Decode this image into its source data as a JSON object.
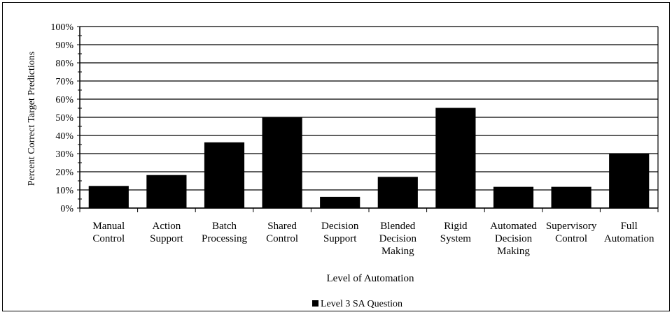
{
  "chart_data": {
    "type": "bar",
    "categories": [
      [
        "Manual",
        "Control"
      ],
      [
        "Action",
        "Support"
      ],
      [
        "Batch",
        "Processing"
      ],
      [
        "Shared",
        "Control"
      ],
      [
        "Decision",
        "Support"
      ],
      [
        "Blended",
        "Decision",
        "Making"
      ],
      [
        "Rigid",
        "System"
      ],
      [
        "Automated",
        "Decision",
        "Making"
      ],
      [
        "Supervisory",
        "Control"
      ],
      [
        "Full",
        "Automation"
      ]
    ],
    "series": [
      {
        "name": "Level 3 SA Question",
        "color": "#000000",
        "values": [
          12,
          18,
          36,
          50,
          6,
          17,
          55,
          11.5,
          11.5,
          30
        ]
      }
    ],
    "ylim": [
      0,
      100
    ],
    "yticks": [
      0,
      10,
      20,
      30,
      40,
      50,
      60,
      70,
      80,
      90,
      100
    ],
    "ytick_labels": [
      "0%",
      "10%",
      "20%",
      "30%",
      "40%",
      "50%",
      "60%",
      "70%",
      "80%",
      "90%",
      "100%"
    ],
    "xlabel": "Level of Automation",
    "ylabel": "Percent Correct Target Predictions",
    "legend_label": "Level 3 SA Question",
    "legend_position": "bottom-center",
    "grid": true
  }
}
